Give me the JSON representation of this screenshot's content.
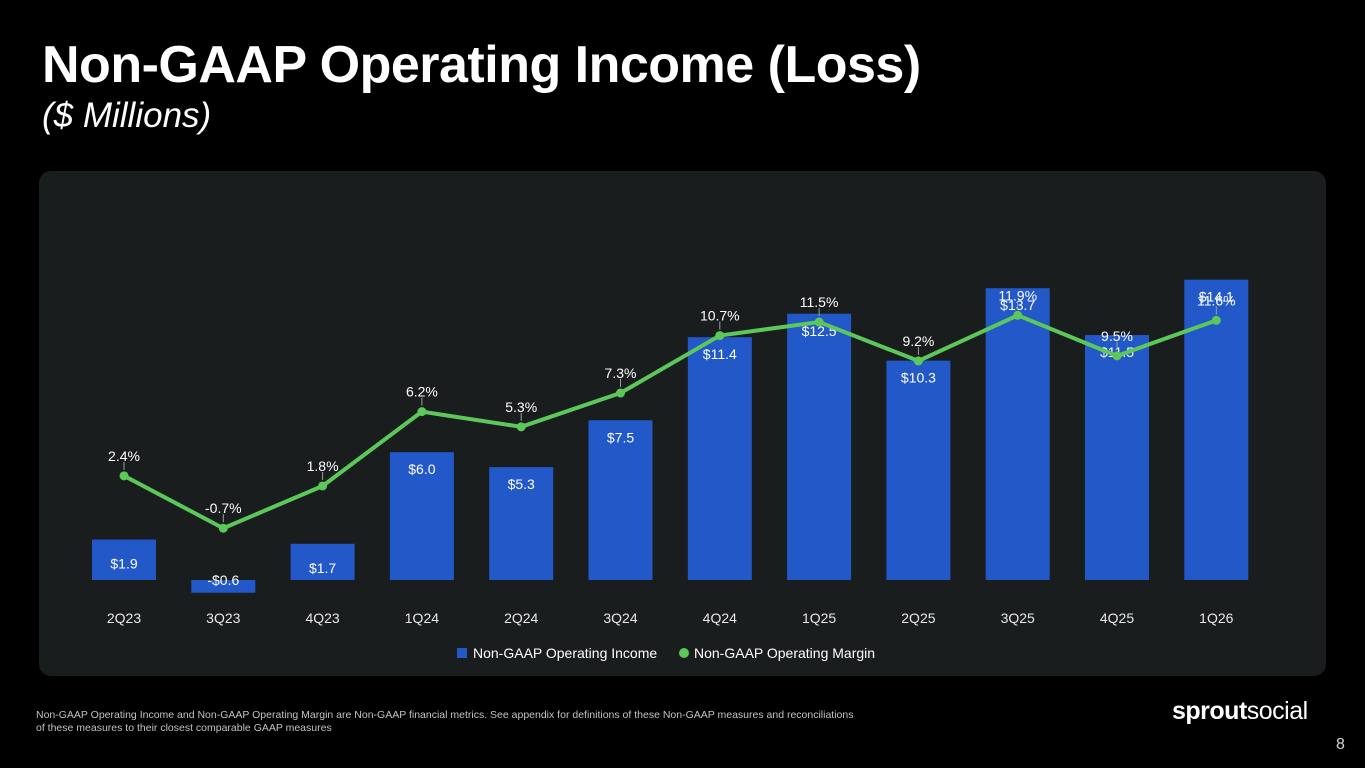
{
  "header": {
    "title": "Non-GAAP Operating Income (Loss)",
    "subtitle": "($ Millions)"
  },
  "footer": {
    "footnote_line1": "Non-GAAP Operating Income and Non-GAAP Operating Margin are Non-GAAP financial metrics. See appendix for definitions of these Non-GAAP measures and reconciliations",
    "footnote_line2": "of these measures to their closest comparable GAAP measures",
    "logo_part1": "sprout",
    "logo_part2": "social",
    "page_number": "8"
  },
  "colors": {
    "bar": "#2258c8",
    "line": "#5cc85a",
    "panel": "#1a1d1e"
  },
  "chart_data": {
    "type": "bar",
    "categories": [
      "2Q23",
      "3Q23",
      "4Q23",
      "1Q24",
      "2Q24",
      "3Q24",
      "4Q24",
      "1Q25",
      "2Q25",
      "3Q25",
      "4Q25",
      "1Q26"
    ],
    "series": [
      {
        "name": "Non-GAAP Operating Income",
        "type": "bar",
        "values": [
          1.9,
          -0.6,
          1.7,
          6.0,
          5.3,
          7.5,
          11.4,
          12.5,
          10.3,
          13.7,
          11.5,
          14.1
        ],
        "labels": [
          "$1.9",
          "-$0.6",
          "$1.7",
          "$6.0",
          "$5.3",
          "$7.5",
          "$11.4",
          "$12.5",
          "$10.3",
          "$13.7",
          "$11.5",
          "$14.1"
        ]
      },
      {
        "name": "Non-GAAP Operating Margin",
        "type": "line",
        "values": [
          2.4,
          -0.7,
          1.8,
          6.2,
          5.3,
          7.3,
          10.7,
          11.5,
          9.2,
          11.9,
          9.5,
          11.6
        ],
        "labels": [
          "2.4%",
          "-0.7%",
          "1.8%",
          "6.2%",
          "5.3%",
          "7.3%",
          "10.7%",
          "11.5%",
          "9.2%",
          "11.9%",
          "9.5%",
          "11.6%"
        ]
      }
    ],
    "legend": "bottom-center",
    "grid": false,
    "y_axis_visible": false
  }
}
